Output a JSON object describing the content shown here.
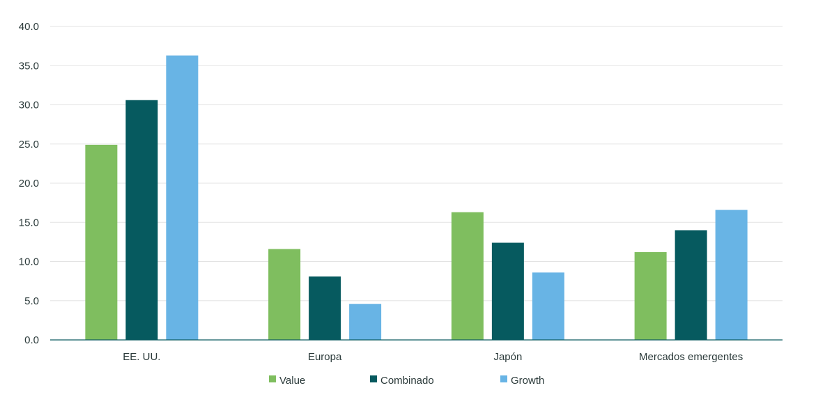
{
  "chart_data": {
    "type": "bar",
    "categories": [
      "EE. UU.",
      "Europa",
      "Japón",
      "Mercados emergentes"
    ],
    "series": [
      {
        "name": "Value",
        "color": "#7fbe5f",
        "values": [
          24.9,
          11.6,
          16.3,
          11.2
        ]
      },
      {
        "name": "Combinado",
        "color": "#065a5f",
        "values": [
          30.6,
          8.1,
          12.4,
          14.0
        ]
      },
      {
        "name": "Growth",
        "color": "#68b4e5",
        "values": [
          36.3,
          4.6,
          8.6,
          16.6
        ]
      }
    ],
    "y_ticks": [
      "0.0",
      "5.0",
      "10.0",
      "15.0",
      "20.0",
      "25.0",
      "30.0",
      "35.0",
      "40.0"
    ],
    "ylim": [
      0,
      40
    ],
    "grid": true,
    "legend_position": "bottom"
  }
}
